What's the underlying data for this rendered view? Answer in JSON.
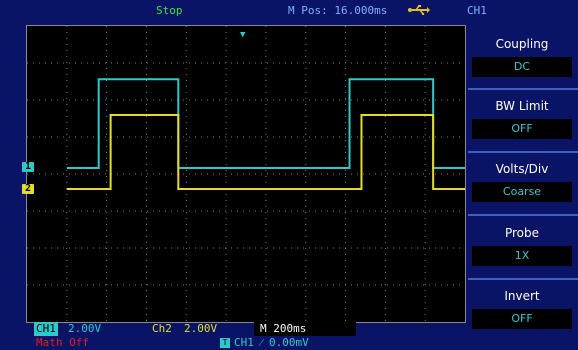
{
  "header": {
    "status": "Stop",
    "mpos": "M Pos: 16.000ms",
    "channel_title": "CH1",
    "usb_icon": "usb-icon"
  },
  "markers": {
    "ch1": "1",
    "ch2": "2",
    "trigger": "T"
  },
  "footer": {
    "ch1_tag": "CH1",
    "ch1_scale": "2.00V",
    "ch2_tag": "Ch2",
    "ch2_scale": "2.00V",
    "timebase": "M 200ms",
    "math": "Math  Off",
    "trigger_source_icon": "T",
    "trigger_info": "CH1  ⁄  0.00mV"
  },
  "menu": [
    {
      "title": "Coupling",
      "value": "DC"
    },
    {
      "title": "BW Limit",
      "value": "OFF"
    },
    {
      "title": "Volts/Div",
      "value": "Coarse"
    },
    {
      "title": "Probe",
      "value": "1X"
    },
    {
      "title": "Invert",
      "value": "OFF"
    }
  ],
  "colors": {
    "ch1": "#2ec9c9",
    "ch2": "#e4dd28",
    "background": "#0a1466",
    "grid": "#7a7a7a"
  },
  "waveform_ch1": {
    "low_level_div": 0,
    "high_level_div": 2.4,
    "segments_ms": [
      [
        0,
        0,
        "low"
      ],
      [
        360,
        0,
        "rise"
      ],
      [
        360,
        760,
        "high"
      ],
      [
        760,
        1620,
        "low"
      ],
      [
        1620,
        2040,
        "high"
      ],
      [
        2040,
        2200,
        "low"
      ]
    ]
  },
  "waveform_ch2": {
    "low_level_div": 0,
    "high_level_div": 2.0,
    "segments_ms": [
      [
        0,
        0,
        "low"
      ],
      [
        420,
        0,
        "rise"
      ],
      [
        420,
        760,
        "high"
      ],
      [
        760,
        1680,
        "low"
      ],
      [
        1680,
        2040,
        "high"
      ],
      [
        2040,
        2200,
        "low"
      ]
    ]
  }
}
